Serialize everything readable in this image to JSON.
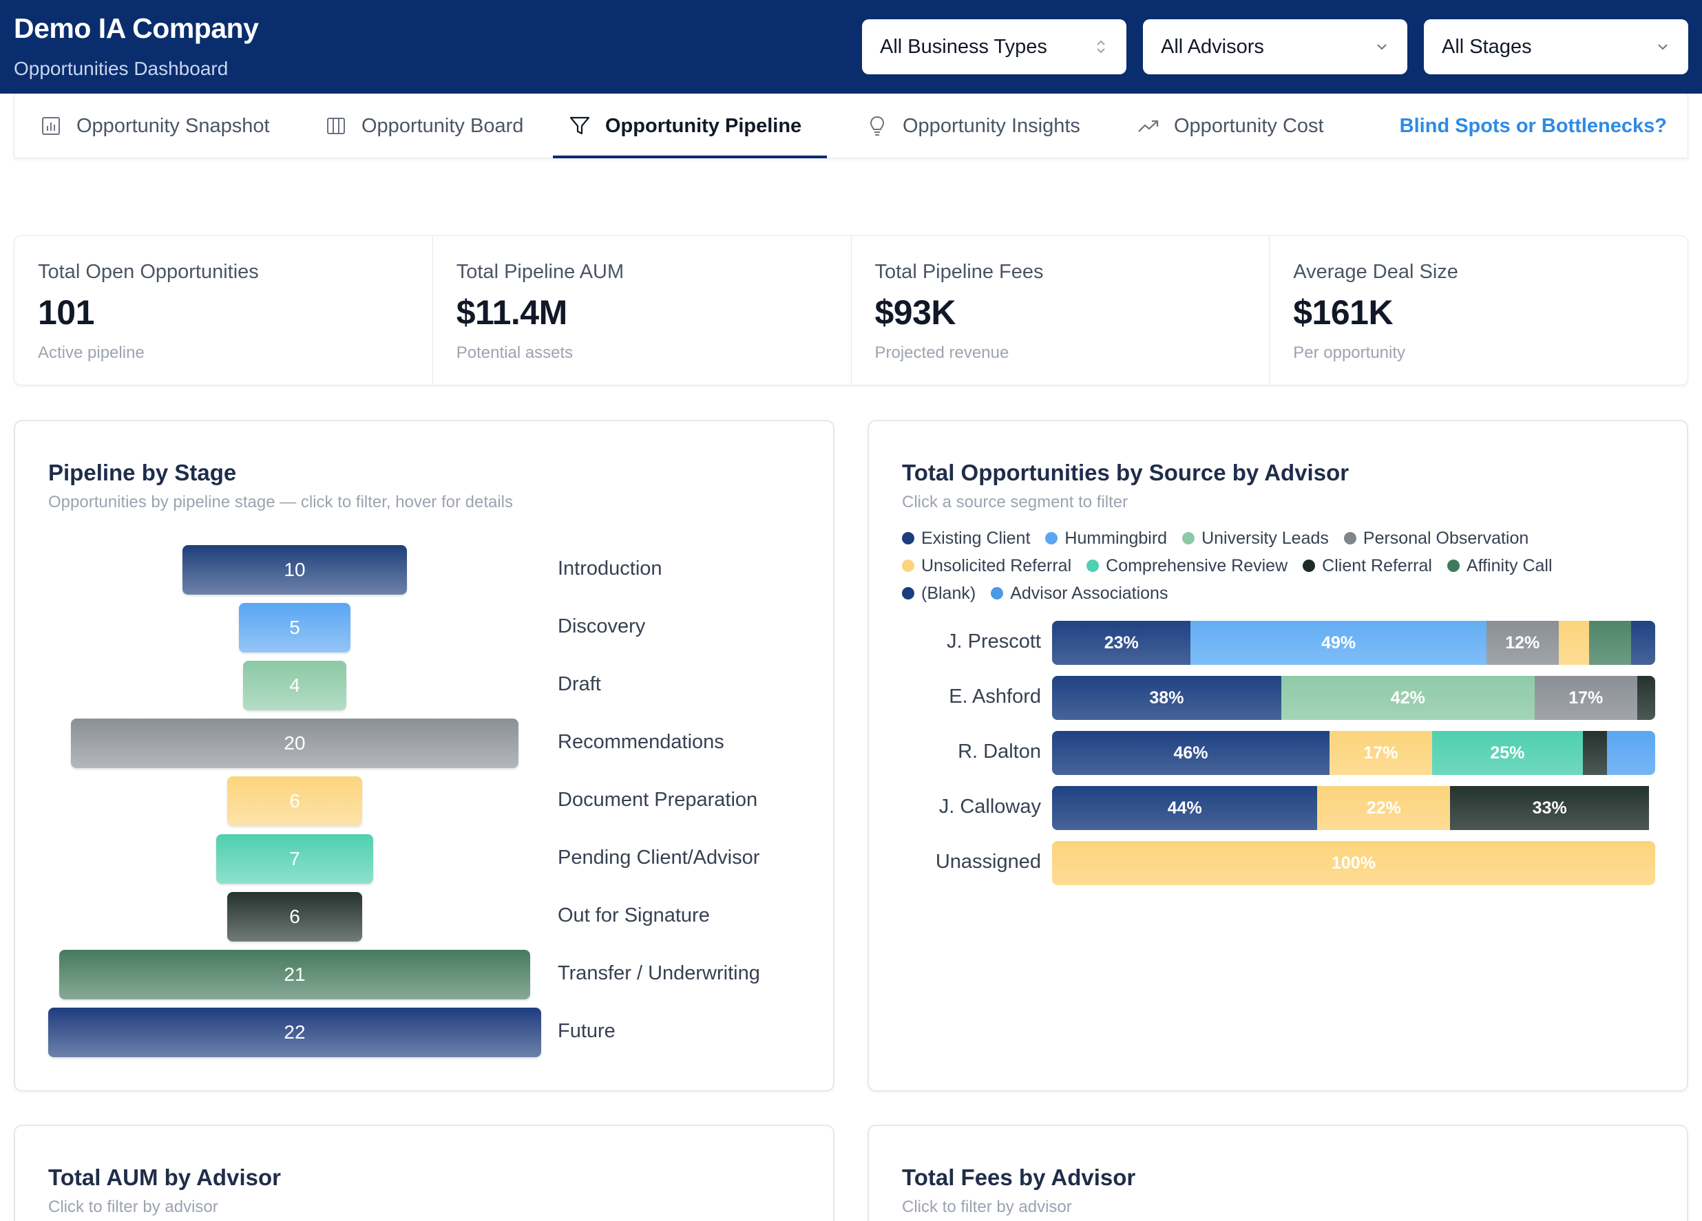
{
  "header": {
    "company": "Demo IA Company",
    "subtitle": "Opportunities Dashboard",
    "filters": [
      {
        "value": "All Business Types",
        "icon": "sort-updown-icon"
      },
      {
        "value": "All Advisors",
        "icon": "chevron-down-icon"
      },
      {
        "value": "All Stages",
        "icon": "chevron-down-icon"
      }
    ]
  },
  "tabs": [
    {
      "label": "Opportunity Snapshot",
      "icon": "bar-chart-icon",
      "active": false
    },
    {
      "label": "Opportunity Board",
      "icon": "columns-icon",
      "active": false
    },
    {
      "label": "Opportunity Pipeline",
      "icon": "funnel-icon",
      "active": true
    },
    {
      "label": "Opportunity Insights",
      "icon": "lightbulb-icon",
      "active": false
    },
    {
      "label": "Opportunity Cost",
      "icon": "trending-up-icon",
      "active": false
    }
  ],
  "tab_link": "Blind Spots or Bottlenecks?",
  "kpis": [
    {
      "label": "Total Open Opportunities",
      "value": "101",
      "sub": "Active pipeline"
    },
    {
      "label": "Total Pipeline AUM",
      "value": "$11.4M",
      "sub": "Potential assets"
    },
    {
      "label": "Total Pipeline Fees",
      "value": "$93K",
      "sub": "Projected revenue"
    },
    {
      "label": "Average Deal Size",
      "value": "$161K",
      "sub": "Per opportunity"
    }
  ],
  "pipeline": {
    "title": "Pipeline by Stage",
    "subtitle": "Opportunities by pipeline stage — click to filter, hover for details",
    "stages": [
      {
        "name": "Introduction",
        "count": "10",
        "color": "#1f3f7a"
      },
      {
        "name": "Discovery",
        "count": "5",
        "color": "#5aa6f2"
      },
      {
        "name": "Draft",
        "count": "4",
        "color": "#8cc9a5"
      },
      {
        "name": "Recommendations",
        "count": "20",
        "color": "#8b9096"
      },
      {
        "name": "Document Preparation",
        "count": "6",
        "color": "#fcd47c"
      },
      {
        "name": "Pending Client/Advisor",
        "count": "7",
        "color": "#4fd0b0"
      },
      {
        "name": "Out for Signature",
        "count": "6",
        "color": "#25332e"
      },
      {
        "name": "Transfer / Underwriting",
        "count": "21",
        "color": "#467a5e"
      },
      {
        "name": "Future",
        "count": "22",
        "color": "#1e3d7e"
      }
    ]
  },
  "source": {
    "title": "Total Opportunities by Source by Advisor",
    "subtitle": "Click a source segment to filter",
    "legend": [
      {
        "name": "Existing Client",
        "color": "#1a3d7c"
      },
      {
        "name": "Hummingbird",
        "color": "#5aa6f2"
      },
      {
        "name": "University Leads",
        "color": "#8cc9a5"
      },
      {
        "name": "Personal Observation",
        "color": "#7f858c"
      },
      {
        "name": "Unsolicited Referral",
        "color": "#fcd47c"
      },
      {
        "name": "Comprehensive Review",
        "color": "#4fd0b0"
      },
      {
        "name": "Client Referral",
        "color": "#1d2b27"
      },
      {
        "name": "Affinity Call",
        "color": "#3f7a5a"
      },
      {
        "name": "(Blank)",
        "color": "#1a3d7c"
      },
      {
        "name": "Advisor Associations",
        "color": "#4a9ae8"
      }
    ],
    "advisors": [
      {
        "name": "J. Prescott",
        "segments": [
          {
            "source": "Existing Client",
            "pct": 23,
            "label": "23%",
            "color": "#1f4283"
          },
          {
            "source": "Hummingbird",
            "pct": 49,
            "label": "49%",
            "color": "#63aef4"
          },
          {
            "source": "Personal Observation",
            "pct": 12,
            "label": "12%",
            "color": "#8b9096"
          },
          {
            "source": "Unsolicited Referral",
            "pct": 5,
            "label": "",
            "color": "#fcd47c"
          },
          {
            "source": "Affinity Call",
            "pct": 7,
            "label": "",
            "color": "#4e8569"
          },
          {
            "source": "(Blank)",
            "pct": 4,
            "label": "",
            "color": "#1f4283"
          }
        ]
      },
      {
        "name": "E. Ashford",
        "segments": [
          {
            "source": "Existing Client",
            "pct": 38,
            "label": "38%",
            "color": "#1f4283"
          },
          {
            "source": "University Leads",
            "pct": 42,
            "label": "42%",
            "color": "#8fcaa8"
          },
          {
            "source": "Personal Observation",
            "pct": 17,
            "label": "17%",
            "color": "#8b9096"
          },
          {
            "source": "Client Referral",
            "pct": 3,
            "label": "",
            "color": "#25332e"
          }
        ]
      },
      {
        "name": "R. Dalton",
        "segments": [
          {
            "source": "Existing Client",
            "pct": 46,
            "label": "46%",
            "color": "#1f4283"
          },
          {
            "source": "Unsolicited Referral",
            "pct": 17,
            "label": "17%",
            "color": "#fcd47c"
          },
          {
            "source": "Comprehensive Review",
            "pct": 25,
            "label": "25%",
            "color": "#4fd0b0"
          },
          {
            "source": "Client Referral",
            "pct": 4,
            "label": "",
            "color": "#25332e"
          },
          {
            "source": "Advisor Associations",
            "pct": 8,
            "label": "",
            "color": "#5aa6f2"
          }
        ]
      },
      {
        "name": "J. Calloway",
        "segments": [
          {
            "source": "Existing Client",
            "pct": 44,
            "label": "44%",
            "color": "#1f4283"
          },
          {
            "source": "Unsolicited Referral",
            "pct": 22,
            "label": "22%",
            "color": "#fcd47c"
          },
          {
            "source": "Client Referral",
            "pct": 33,
            "label": "33%",
            "color": "#25332e"
          }
        ]
      },
      {
        "name": "Unassigned",
        "segments": [
          {
            "source": "Unsolicited Referral",
            "pct": 100,
            "label": "100%",
            "color": "#fcd47c"
          }
        ]
      }
    ]
  },
  "aum": {
    "title": "Total AUM by Advisor",
    "subtitle": "Click to filter by advisor"
  },
  "fees": {
    "title": "Total Fees by Advisor",
    "subtitle": "Click to filter by advisor"
  }
}
